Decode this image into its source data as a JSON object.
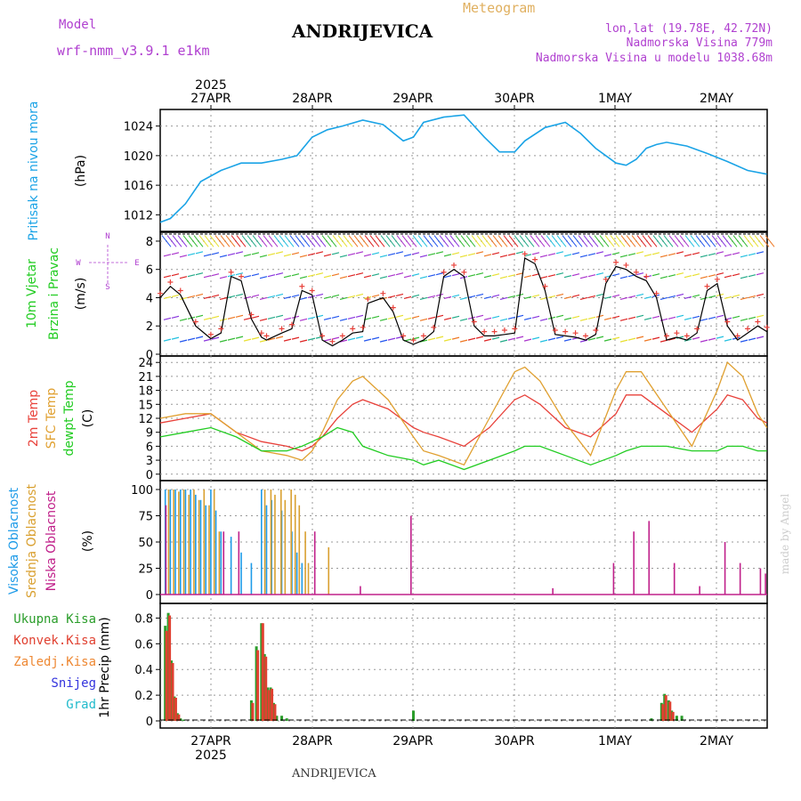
{
  "header": {
    "model_label": "Model",
    "model_name": "wrf-nmm_v3.9.1  e1km",
    "title": "ANDRIJEVICA",
    "meteogram": "Meteogram",
    "lonlat": "lon,lat (19.78E, 42.72N)",
    "elev": "Nadmorska Visina 779m",
    "elev_model": "Nadmorska Visina u modelu 1038.68m",
    "footer": "ANDRIJEVICA",
    "credit": "made by Angel"
  },
  "time_axis": {
    "year": "2025",
    "days": [
      "27APR",
      "28APR",
      "29APR",
      "30APR",
      "1MAY",
      "2MAY"
    ],
    "start": "2025-04-26T12:00",
    "end": "2025-05-02T12:00"
  },
  "colors": {
    "pressure": "#1aa3e6",
    "temp2m": "#e8413a",
    "sfc": "#e0a030",
    "dew": "#22cc22",
    "high": "#1e9be8",
    "mid": "#d9a030",
    "low": "#c0208a",
    "total": "#2a9d2a",
    "conv": "#e04030",
    "purple": "#b040d0"
  },
  "panel_labels": {
    "pressure": [
      "Pritisak na nivou mora",
      "(hPa)"
    ],
    "wind": [
      "10m Vjetar",
      "Brzina i Pravac",
      "(m/s)"
    ],
    "wind_compass": [
      "N",
      "W",
      "E",
      "S"
    ],
    "temp": [
      "2m Temp",
      "SFC Temp",
      "dewpt Temp",
      "(C)"
    ],
    "cloud": [
      "Visoka Oblacnost",
      "Srednja Oblacnost",
      "Niska Oblacnost",
      "(%)"
    ],
    "precip": [
      "Ukupna  Kisa",
      "Konvek.Kisa",
      "Zaledj.Kisa",
      "Snijeg",
      "Grad",
      "1hr Precip (mm)"
    ]
  },
  "chart_data": [
    {
      "type": "line",
      "name": "pressure",
      "ylim": [
        1010,
        1026
      ],
      "yticks": [
        "1012",
        "1016",
        "1020",
        "1024"
      ],
      "x_days": [
        0,
        0.1,
        0.25,
        0.4,
        0.6,
        0.8,
        1.0,
        1.2,
        1.35,
        1.5,
        1.65,
        1.8,
        2.0,
        2.2,
        2.4,
        2.5,
        2.6,
        2.8,
        3.0,
        3.2,
        3.35,
        3.5,
        3.6,
        3.8,
        4.0,
        4.15,
        4.3,
        4.5,
        4.6,
        4.7,
        4.8,
        4.9,
        5.0,
        5.2,
        5.4,
        5.6,
        5.8,
        5.99
      ],
      "y": [
        1011.0,
        1011.5,
        1013.5,
        1016.5,
        1018.0,
        1019.0,
        1019.0,
        1019.5,
        1020.0,
        1022.5,
        1023.5,
        1024.0,
        1024.8,
        1024.2,
        1022.0,
        1022.5,
        1024.5,
        1025.2,
        1025.5,
        1022.5,
        1020.5,
        1020.5,
        1022.0,
        1023.8,
        1024.5,
        1023.0,
        1021.0,
        1019.0,
        1018.7,
        1019.5,
        1021.0,
        1021.5,
        1021.8,
        1021.3,
        1020.3,
        1019.2,
        1018.0,
        1017.5
      ]
    },
    {
      "type": "line",
      "name": "wind",
      "ylim": [
        0,
        8.5
      ],
      "yticks": [
        "0",
        "2",
        "4",
        "6",
        "8"
      ],
      "x_days": [
        0,
        0.1,
        0.2,
        0.35,
        0.5,
        0.6,
        0.7,
        0.8,
        0.9,
        1.0,
        1.05,
        1.2,
        1.3,
        1.4,
        1.5,
        1.6,
        1.7,
        1.8,
        1.9,
        2.0,
        2.05,
        2.2,
        2.3,
        2.4,
        2.5,
        2.6,
        2.7,
        2.8,
        2.9,
        3.0,
        3.1,
        3.2,
        3.3,
        3.4,
        3.5,
        3.6,
        3.7,
        3.8,
        3.9,
        4.0,
        4.1,
        4.2,
        4.3,
        4.4,
        4.5,
        4.6,
        4.7,
        4.8,
        4.9,
        5.0,
        5.1,
        5.2,
        5.3,
        5.4,
        5.5,
        5.6,
        5.7,
        5.8,
        5.9,
        5.99
      ],
      "y": [
        4.0,
        4.8,
        4.2,
        2.0,
        1.1,
        1.5,
        5.5,
        5.2,
        2.5,
        1.2,
        1.0,
        1.5,
        1.8,
        4.5,
        4.2,
        1.0,
        0.6,
        1.0,
        1.5,
        1.6,
        3.6,
        4.0,
        3.0,
        1.0,
        0.7,
        1.0,
        1.6,
        5.5,
        6.0,
        5.5,
        2.0,
        1.3,
        1.3,
        1.4,
        1.5,
        6.8,
        6.4,
        4.5,
        1.4,
        1.3,
        1.2,
        1.0,
        1.4,
        5.0,
        6.2,
        6.0,
        5.5,
        5.2,
        4.0,
        1.0,
        1.2,
        1.0,
        1.5,
        4.5,
        5.0,
        2.0,
        1.0,
        1.5,
        2.0,
        1.6
      ]
    },
    {
      "type": "line",
      "name": "temperature",
      "ylim": [
        -1,
        25
      ],
      "yticks": [
        "0",
        "3",
        "6",
        "9",
        "12",
        "15",
        "18",
        "21",
        "24"
      ],
      "series": [
        {
          "name": "2m Temp",
          "x_days": [
            0,
            0.25,
            0.5,
            0.75,
            1.0,
            1.25,
            1.4,
            1.5,
            1.6,
            1.75,
            1.9,
            2.0,
            2.25,
            2.5,
            2.6,
            2.75,
            3.0,
            3.25,
            3.5,
            3.6,
            3.75,
            4.0,
            4.25,
            4.5,
            4.6,
            4.75,
            5.0,
            5.25,
            5.5,
            5.6,
            5.75,
            5.9,
            5.99
          ],
          "y": [
            11,
            12,
            13,
            9,
            7,
            6,
            5,
            6,
            8,
            12,
            15,
            16,
            14,
            10,
            9,
            8,
            6,
            10,
            16,
            17,
            15,
            10,
            8,
            13,
            17,
            17,
            13,
            9,
            14,
            17,
            16,
            12,
            11
          ]
        },
        {
          "name": "SFC Temp",
          "x_days": [
            0,
            0.25,
            0.5,
            0.75,
            1.0,
            1.25,
            1.4,
            1.5,
            1.6,
            1.75,
            1.9,
            2.0,
            2.25,
            2.5,
            2.6,
            2.75,
            3.0,
            3.25,
            3.5,
            3.6,
            3.75,
            4.0,
            4.25,
            4.5,
            4.6,
            4.75,
            5.0,
            5.25,
            5.5,
            5.6,
            5.75,
            5.9,
            5.99
          ],
          "y": [
            12,
            13,
            13,
            9,
            5,
            4,
            3,
            5,
            9,
            16,
            20,
            21,
            16,
            8,
            5,
            4,
            2,
            12,
            22,
            23,
            20,
            11,
            4,
            18,
            22,
            22,
            14,
            6,
            18,
            24,
            21,
            13,
            10
          ]
        },
        {
          "name": "dewpt Temp",
          "x_days": [
            0,
            0.25,
            0.5,
            0.75,
            1.0,
            1.25,
            1.4,
            1.5,
            1.6,
            1.75,
            1.9,
            2.0,
            2.25,
            2.5,
            2.6,
            2.75,
            3.0,
            3.25,
            3.5,
            3.6,
            3.75,
            4.0,
            4.25,
            4.5,
            4.6,
            4.75,
            5.0,
            5.25,
            5.5,
            5.6,
            5.75,
            5.9,
            5.99
          ],
          "y": [
            8,
            9,
            10,
            8,
            5,
            5,
            6,
            7,
            8,
            10,
            9,
            6,
            4,
            3,
            2,
            3,
            1,
            3,
            5,
            6,
            6,
            4,
            2,
            4,
            5,
            6,
            6,
            5,
            5,
            6,
            6,
            5,
            5
          ]
        }
      ]
    },
    {
      "type": "bar",
      "name": "cloud",
      "ylim": [
        0,
        100
      ],
      "yticks": [
        "0",
        "25",
        "50",
        "75",
        "100"
      ],
      "series": [
        {
          "name": "Visoka Oblacnost",
          "x_days": [
            0.05,
            0.1,
            0.15,
            0.2,
            0.25,
            0.3,
            0.35,
            0.4,
            0.45,
            0.5,
            0.55,
            0.6,
            0.7,
            0.8,
            0.9,
            1.0,
            1.05,
            1.1,
            1.2,
            1.3,
            1.35,
            1.4
          ],
          "y": [
            100,
            100,
            100,
            100,
            100,
            100,
            95,
            90,
            85,
            100,
            80,
            60,
            55,
            40,
            30,
            100,
            85,
            90,
            80,
            60,
            40,
            30
          ]
        },
        {
          "name": "Srednja Oblacnost",
          "x_days": [
            0.07,
            0.12,
            0.17,
            0.22,
            0.27,
            0.32,
            0.37,
            0.42,
            0.47,
            0.52,
            0.57,
            1.02,
            1.08,
            1.12,
            1.18,
            1.22,
            1.28,
            1.32,
            1.36,
            1.42,
            1.45,
            1.65
          ],
          "y": [
            100,
            100,
            98,
            100,
            95,
            100,
            90,
            100,
            85,
            100,
            60,
            100,
            100,
            95,
            100,
            90,
            100,
            95,
            85,
            60,
            30,
            45
          ]
        },
        {
          "name": "Niska Oblacnost",
          "x_days": [
            0.03,
            0.6,
            0.75,
            1.5,
            2.45,
            1.95,
            3.85,
            4.45,
            4.65,
            4.8,
            5.05,
            5.3,
            5.55,
            5.7,
            5.9,
            5.95
          ],
          "y": [
            85,
            60,
            60,
            60,
            75,
            8,
            6,
            30,
            60,
            70,
            30,
            8,
            50,
            30,
            25,
            20
          ]
        }
      ]
    },
    {
      "type": "bar",
      "name": "precipitation",
      "ylim": [
        0,
        0.9
      ],
      "yticks": [
        "0",
        "0.2",
        "0.4",
        "0.6",
        "0.8"
      ],
      "series": [
        {
          "name": "Ukupna Kisa",
          "x_days": [
            0.05,
            0.08,
            0.11,
            0.14,
            0.17,
            0.2,
            0.23,
            0.9,
            0.95,
            1.0,
            1.03,
            1.06,
            1.09,
            1.12,
            1.15,
            1.2,
            1.25,
            2.5,
            4.85,
            4.95,
            4.98,
            5.02,
            5.05,
            5.1,
            5.15
          ],
          "y": [
            0.74,
            0.84,
            0.47,
            0.19,
            0.06,
            0.02,
            0.01,
            0.16,
            0.58,
            0.76,
            0.52,
            0.26,
            0.26,
            0.14,
            0.04,
            0.04,
            0.02,
            0.08,
            0.02,
            0.14,
            0.21,
            0.16,
            0.08,
            0.04,
            0.04
          ]
        },
        {
          "name": "Konvek.Kisa",
          "x_days": [
            0.05,
            0.08,
            0.11,
            0.14,
            0.17,
            0.9,
            0.95,
            1.0,
            1.03,
            1.06,
            1.09,
            1.12,
            4.95,
            4.98,
            5.02,
            5.05
          ],
          "y": [
            0.7,
            0.82,
            0.45,
            0.18,
            0.05,
            0.14,
            0.55,
            0.76,
            0.5,
            0.24,
            0.25,
            0.13,
            0.13,
            0.2,
            0.15,
            0.07
          ]
        }
      ]
    }
  ]
}
